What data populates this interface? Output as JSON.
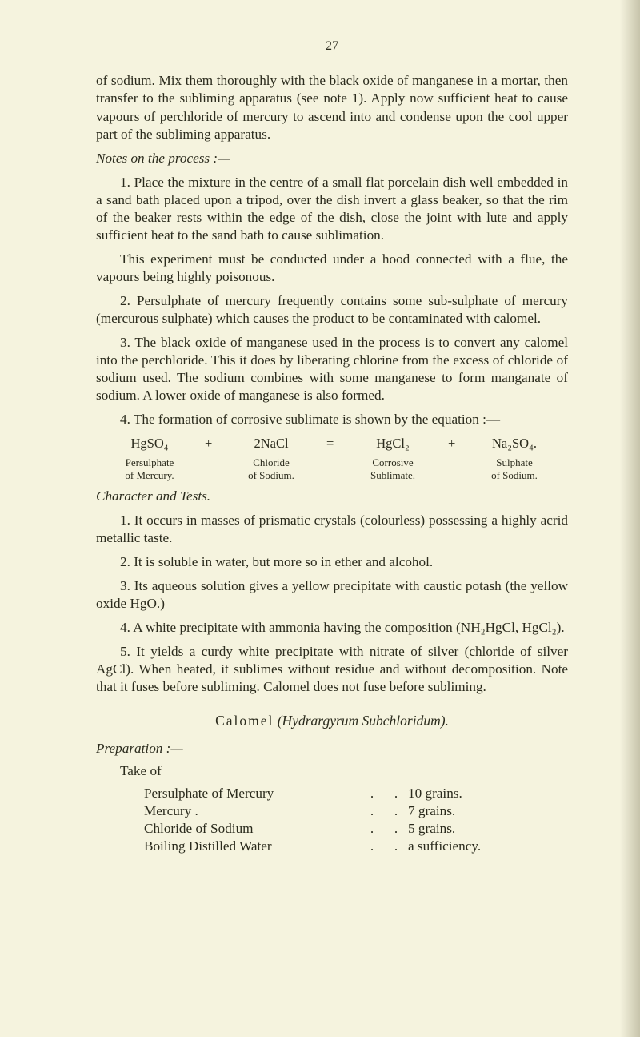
{
  "pageNumber": "27",
  "p1": "of sodium. Mix them thoroughly with the black oxide of manganese in a mortar, then transfer to the subliming apparatus (see note 1). Apply now sufficient heat to cause vapours of perchloride of mercury to ascend into and condense upon the cool upper part of the subliming apparatus.",
  "notesHeading": "Notes on the process :—",
  "n1": "1. Place the mixture in the centre of a small flat porcelain dish well embedded in a sand bath placed upon a tripod, over the dish invert a glass beaker, so that the rim of the beaker rests within the edge of the dish, close the joint with lute and apply sufficient heat to the sand bath to cause sublimation.",
  "n1b": "This experiment must be conducted under a hood connected with a flue, the vapours being highly poisonous.",
  "n2": "2. Persulphate of mercury frequently contains some sub-sulphate of mercury (mercurous sulphate) which causes the product to be contaminated with calomel.",
  "n3": "3. The black oxide of manganese used in the process is to convert any calomel into the perchloride. This it does by liberating chlorine from the excess of chloride of sodium used. The sodium combines with some manganese to form manganate of sodium. A lower oxide of manganese is also formed.",
  "n4": "4. The formation of corrosive sublimate is shown by the equation :—",
  "eq": {
    "a": "HgSO₄",
    "plus1": "+",
    "b": "2NaCl",
    "eqs": "=",
    "c": "HgCl₂",
    "plus2": "+",
    "d": "Na₂SO₄.",
    "la": "Persulphate\nof Mercury.",
    "lb": "Chloride\nof Sodium.",
    "lc": "Corrosive\nSublimate.",
    "ld": "Sulphate\nof Sodium."
  },
  "charTests": "Character and Tests.",
  "t1": "1. It occurs in masses of prismatic crystals (colourless) possessing a highly acrid metallic taste.",
  "t2": "2. It is soluble in water, but more so in ether and alcohol.",
  "t3": "3. Its aqueous solution gives a yellow precipitate with caustic potash (the yellow oxide HgO.)",
  "t4": "4. A white precipitate with ammonia having the composition (NH₂HgCl, HgCl₂).",
  "t5": "5. It yields a curdy white precipitate with nitrate of silver (chloride of silver AgCl). When heated, it sublimes without residue and without decomposition. Note that it fuses before subliming. Calomel does not fuse before subliming.",
  "calomel": {
    "word": "Calomel",
    "paren": "(Hydrargyrum Subchloridum)."
  },
  "preparation": "Preparation :—",
  "takeOf": "Take of",
  "ingredients": [
    {
      "name": "Persulphate of Mercury",
      "amt": "10 grains."
    },
    {
      "name": "Mercury        .",
      "amt": "7 grains."
    },
    {
      "name": "Chloride of Sodium",
      "amt": "5 grains."
    },
    {
      "name": "Boiling Distilled Water",
      "amt": "a sufficiency."
    }
  ],
  "dots": {
    "d": "."
  }
}
